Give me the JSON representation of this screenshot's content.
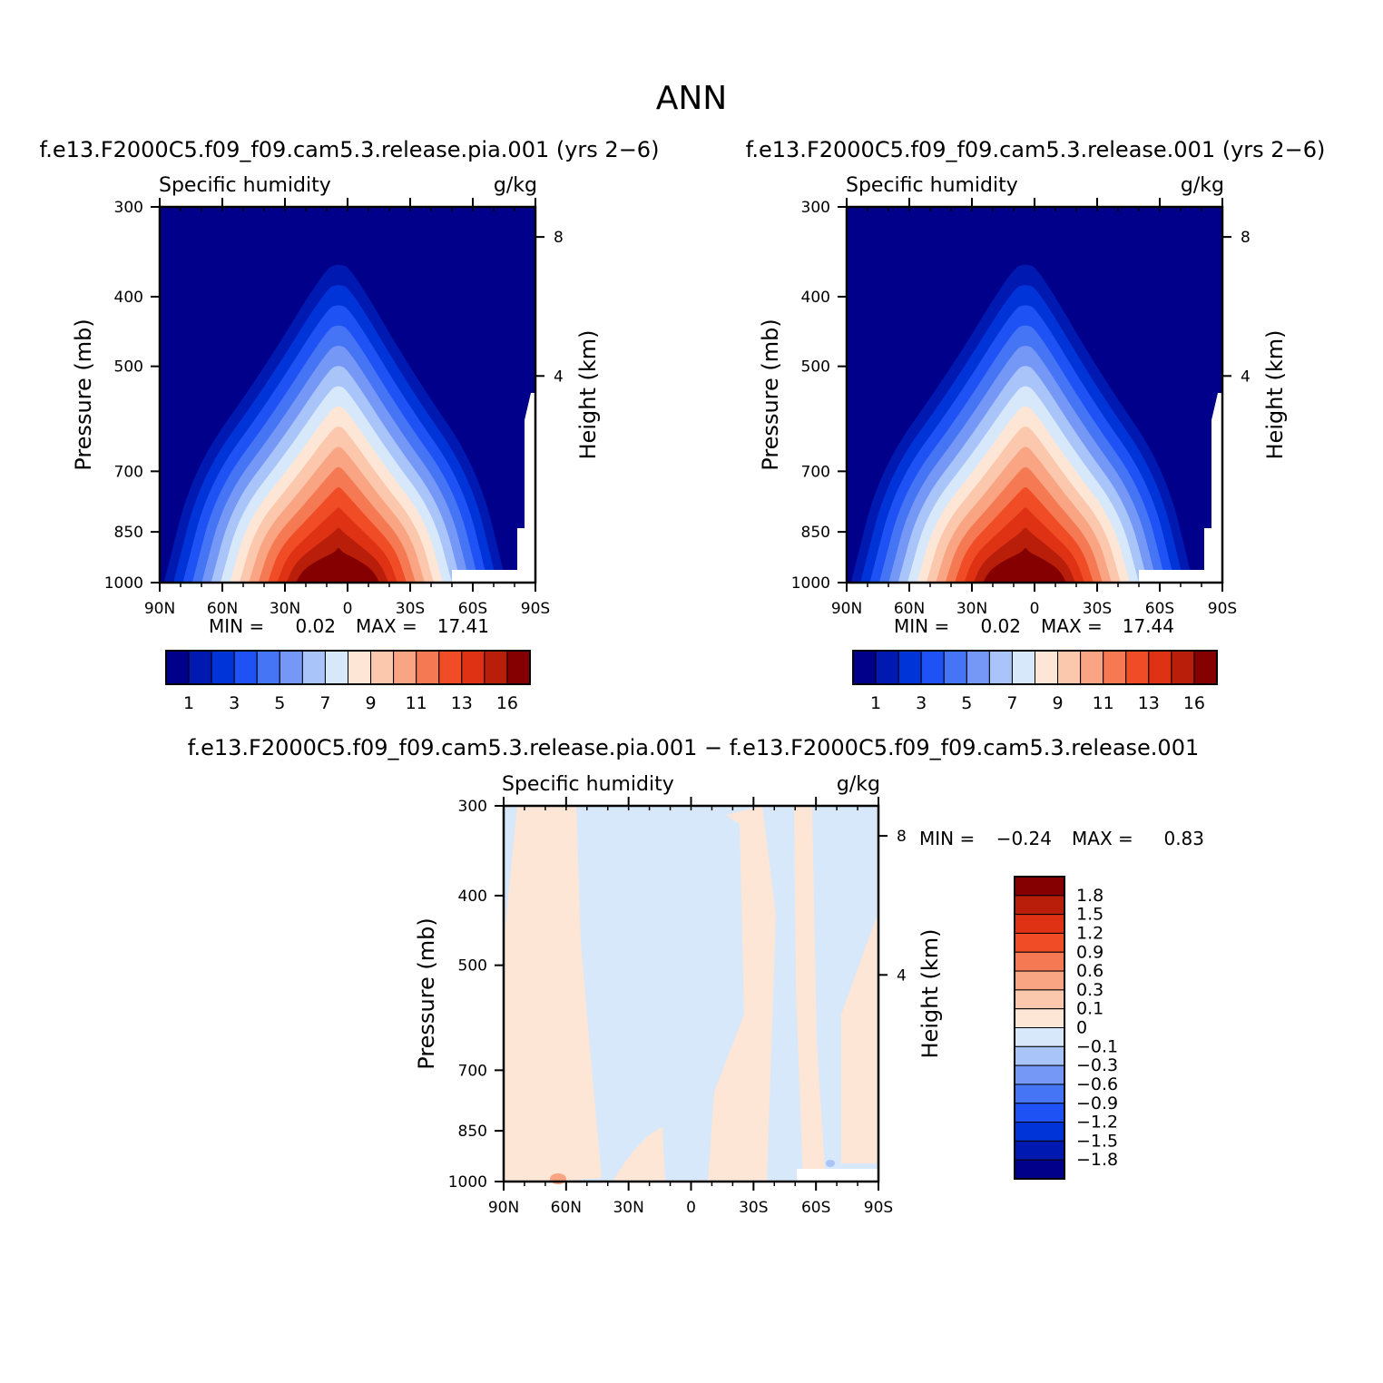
{
  "figure_title": "ANN",
  "palette": {
    "humidity": [
      "#00008a",
      "#0019b0",
      "#0033d8",
      "#1f52f5",
      "#4574f5",
      "#7597f5",
      "#a9c4f8",
      "#d7e8fb",
      "#fde6d6",
      "#fcc8ad",
      "#f9a483",
      "#f57a53",
      "#f04d27",
      "#df3214",
      "#b81e0a",
      "#850000"
    ],
    "diff": [
      "#00008a",
      "#0019b0",
      "#0033d8",
      "#1f52f5",
      "#4574f5",
      "#7597f5",
      "#a9c4f8",
      "#d7e8fb",
      "#fde6d6",
      "#fcc8ad",
      "#f9a483",
      "#f57a53",
      "#f04d27",
      "#df3214",
      "#b81e0a",
      "#850000"
    ]
  },
  "chart_data": [
    {
      "type": "contour",
      "case_title": "f.e13.F2000C5.f09_f09.cam5.3.release.pia.001 (yrs 2−6)",
      "variable": "Specific humidity",
      "units": "g/kg",
      "ylabel": "Pressure (mb)",
      "ylabel_right": "Height (km)",
      "x_ticks": [
        "90N",
        "60N",
        "30N",
        "0",
        "30S",
        "60S",
        "90S"
      ],
      "y_ticks": [
        "300",
        "400",
        "500",
        "700",
        "850",
        "1000"
      ],
      "height_ticks": [
        "8",
        "4"
      ],
      "xlim": [
        90,
        -90
      ],
      "ylim": [
        300,
        1000
      ],
      "min_label": "MIN =",
      "min_value": "0.02",
      "max_label": "MAX =",
      "max_value": "17.41",
      "colorbar_labels": [
        "1",
        "3",
        "5",
        "7",
        "9",
        "11",
        "13",
        "16"
      ],
      "levels": [
        1,
        2,
        3,
        4,
        5,
        6,
        7,
        8,
        9,
        10,
        11,
        12,
        13,
        14,
        16
      ]
    },
    {
      "type": "contour",
      "case_title": "f.e13.F2000C5.f09_f09.cam5.3.release.001 (yrs 2−6)",
      "variable": "Specific humidity",
      "units": "g/kg",
      "ylabel": "Pressure (mb)",
      "ylabel_right": "Height (km)",
      "x_ticks": [
        "90N",
        "60N",
        "30N",
        "0",
        "30S",
        "60S",
        "90S"
      ],
      "y_ticks": [
        "300",
        "400",
        "500",
        "700",
        "850",
        "1000"
      ],
      "height_ticks": [
        "8",
        "4"
      ],
      "xlim": [
        90,
        -90
      ],
      "ylim": [
        300,
        1000
      ],
      "min_label": "MIN =",
      "min_value": "0.02",
      "max_label": "MAX =",
      "max_value": "17.44",
      "colorbar_labels": [
        "1",
        "3",
        "5",
        "7",
        "9",
        "11",
        "13",
        "16"
      ],
      "levels": [
        1,
        2,
        3,
        4,
        5,
        6,
        7,
        8,
        9,
        10,
        11,
        12,
        13,
        14,
        16
      ]
    },
    {
      "type": "contour",
      "case_title": "f.e13.F2000C5.f09_f09.cam5.3.release.pia.001 − f.e13.F2000C5.f09_f09.cam5.3.release.001",
      "variable": "Specific humidity",
      "units": "g/kg",
      "ylabel": "Pressure (mb)",
      "ylabel_right": "Height (km)",
      "x_ticks": [
        "90N",
        "60N",
        "30N",
        "0",
        "30S",
        "60S",
        "90S"
      ],
      "y_ticks": [
        "300",
        "400",
        "500",
        "700",
        "850",
        "1000"
      ],
      "height_ticks": [
        "8",
        "4"
      ],
      "xlim": [
        90,
        -90
      ],
      "ylim": [
        300,
        1000
      ],
      "min_label": "MIN =",
      "min_value": "−0.24",
      "max_label": "MAX =",
      "max_value": "0.83",
      "colorbar_labels": [
        "1.8",
        "1.5",
        "1.2",
        "0.9",
        "0.6",
        "0.3",
        "0.1",
        "0",
        "−0.1",
        "−0.3",
        "−0.6",
        "−0.9",
        "−1.2",
        "−1.5",
        "−1.8"
      ],
      "levels": [
        -1.8,
        -1.5,
        -1.2,
        -0.9,
        -0.6,
        -0.3,
        -0.1,
        0,
        0.1,
        0.3,
        0.6,
        0.9,
        1.2,
        1.5,
        1.8
      ]
    }
  ]
}
